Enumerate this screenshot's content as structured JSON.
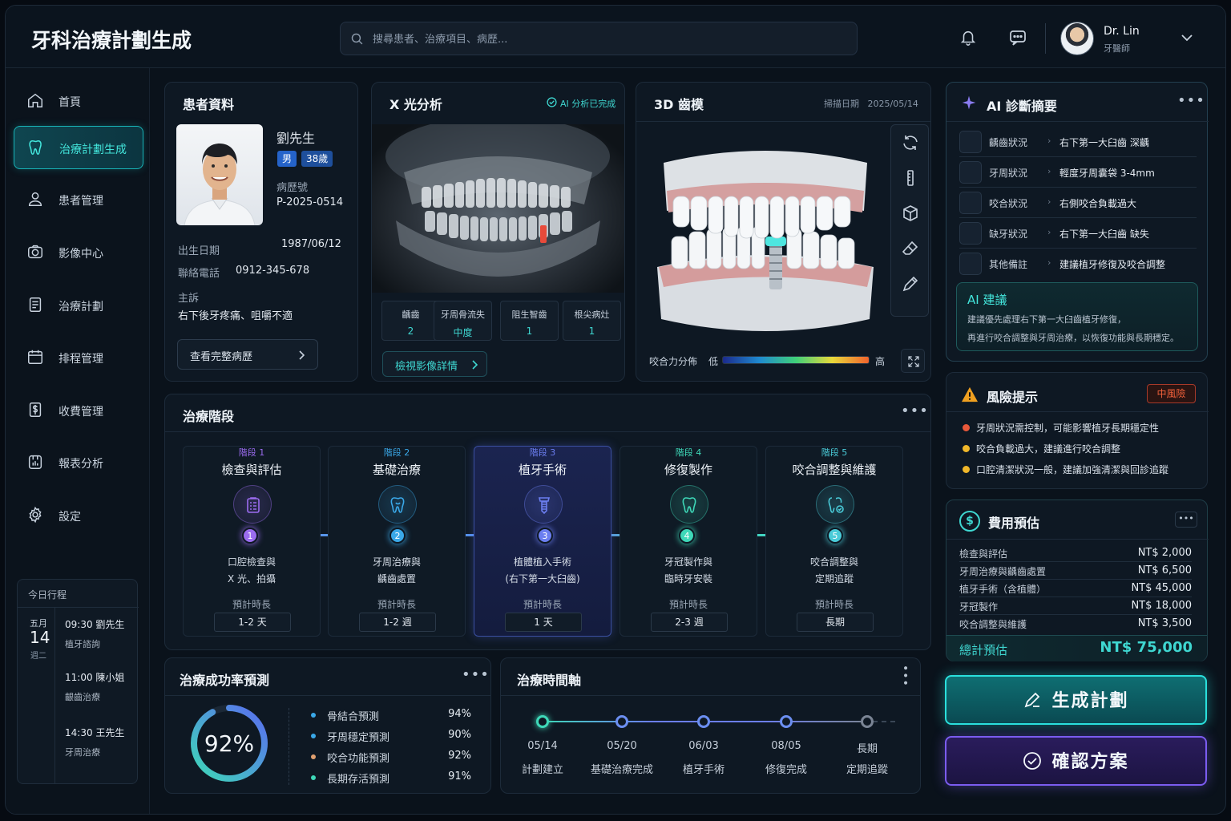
{
  "app": {
    "title": "牙科治療計劃生成"
  },
  "search": {
    "placeholder": "搜尋患者、治療項目、病歷..."
  },
  "user": {
    "name": "Dr. Lin",
    "role": "牙醫師"
  },
  "nav": [
    {
      "label": "首頁",
      "icon": "home-icon"
    },
    {
      "label": "治療計劃生成",
      "icon": "tooth-icon",
      "active": true
    },
    {
      "label": "患者管理",
      "icon": "user-icon"
    },
    {
      "label": "影像中心",
      "icon": "camera-icon"
    },
    {
      "label": "治療計劃",
      "icon": "document-icon"
    },
    {
      "label": "排程管理",
      "icon": "calendar-icon"
    },
    {
      "label": "收費管理",
      "icon": "dollar-icon"
    },
    {
      "label": "報表分析",
      "icon": "chart-icon"
    },
    {
      "label": "設定",
      "icon": "gear-icon"
    }
  ],
  "schedule": {
    "title": "今日行程",
    "month": "五月",
    "day": "14",
    "weekday": "週二",
    "events": [
      {
        "time": "09:30  劉先生",
        "desc": "植牙諮詢"
      },
      {
        "time": "11:00  陳小姐",
        "desc": "齦齒治療"
      },
      {
        "time": "14:30  王先生",
        "desc": "牙周治療"
      }
    ]
  },
  "patient": {
    "title": "患者資料",
    "name": "劉先生",
    "gender": "男",
    "age": "38歲",
    "record_label": "病歷號",
    "record": "P-2025-0514",
    "dob_label": "出生日期",
    "dob": "1987/06/12",
    "phone_label": "聯絡電話",
    "phone": "0912-345-678",
    "complaint_label": "主訴",
    "complaint": "右下後牙疼痛、咀嚼不適",
    "button": "查看完整病歷"
  },
  "xray": {
    "title": "X 光分析",
    "status": "AI 分析已完成",
    "stats": [
      {
        "k": "齲齒",
        "v": "2"
      },
      {
        "k": "牙周骨流失",
        "v": "中度"
      },
      {
        "k": "阻生智齒",
        "v": "1"
      },
      {
        "k": "根尖病灶",
        "v": "1"
      }
    ],
    "button": "檢視影像詳情"
  },
  "model3d": {
    "title": "3D 齒模",
    "scan_date": "掃描日期   2025/05/14",
    "force_label": "咬合力分佈",
    "low": "低",
    "high": "高"
  },
  "ai": {
    "title": "AI 診斷摘要",
    "rows": [
      {
        "k": "齲齒狀況",
        "v": "右下第一大臼齒 深齲"
      },
      {
        "k": "牙周狀況",
        "v": "輕度牙周囊袋 3-4mm"
      },
      {
        "k": "咬合狀況",
        "v": "右側咬合負載過大"
      },
      {
        "k": "缺牙狀況",
        "v": "右下第一大臼齒 缺失"
      },
      {
        "k": "其他備註",
        "v": "建議植牙修復及咬合調整"
      }
    ],
    "suggest_title": "AI 建議",
    "suggest_line1": "建議優先處理右下第一大臼齒植牙修復，",
    "suggest_line2": "再進行咬合調整與牙周治療，以恢復功能與長期穩定。"
  },
  "risk": {
    "title": "風險提示",
    "level": "中風險",
    "items": [
      {
        "text": "牙周狀況需控制，可能影響植牙長期穩定性",
        "color": "#e8583a"
      },
      {
        "text": "咬合負載過大，建議進行咬合調整",
        "color": "#f0b72a"
      },
      {
        "text": "口腔清潔狀況一般，建議加強清潔與回診追蹤",
        "color": "#f0b72a"
      }
    ]
  },
  "fees": {
    "title": "費用預估",
    "rows": [
      {
        "k": "檢查與評估",
        "v": "NT$ 2,000"
      },
      {
        "k": "牙周治療與齲齒處置",
        "v": "NT$ 6,500"
      },
      {
        "k": "植牙手術（含植體）",
        "v": "NT$ 45,000"
      },
      {
        "k": "牙冠製作",
        "v": "NT$ 18,000"
      },
      {
        "k": "咬合調整與維護",
        "v": "NT$ 3,500"
      }
    ],
    "total_label": "總計預估",
    "total": "NT$ 75,000"
  },
  "stages": {
    "title": "治療階段",
    "dur_label": "預計時長",
    "items": [
      {
        "label": "階段 1",
        "name": "檢查與評估",
        "desc1": "口腔檢查與",
        "desc2": "X 光、拍攝",
        "dur": "1-2 天",
        "num": "1",
        "color": "#9b6cf0",
        "icon": "clipboard-icon"
      },
      {
        "label": "階段 2",
        "name": "基礎治療",
        "desc1": "牙周治療與",
        "desc2": "齲齒處置",
        "dur": "1-2 週",
        "num": "2",
        "color": "#3aa8e8",
        "icon": "tooth-treatment-icon"
      },
      {
        "label": "階段 3",
        "name": "植牙手術",
        "desc1": "植體植入手術",
        "desc2": "(右下第一大臼齒)",
        "dur": "1 天",
        "num": "3",
        "color": "#6b7ef0",
        "icon": "implant-icon"
      },
      {
        "label": "階段 4",
        "name": "修復製作",
        "desc1": "牙冠製作與",
        "desc2": "臨時牙安裝",
        "dur": "2-3 週",
        "num": "4",
        "color": "#3ed8b8",
        "icon": "crown-icon"
      },
      {
        "label": "階段 5",
        "name": "咬合調整與維護",
        "desc1": "咬合調整與",
        "desc2": "定期追蹤",
        "dur": "長期",
        "num": "5",
        "color": "#4acbd8",
        "icon": "tooth-check-icon"
      }
    ]
  },
  "success": {
    "title": "治療成功率預測",
    "overall": "92%",
    "overall_value": 0.92,
    "rows": [
      {
        "k": "骨結合預測",
        "v": "94%",
        "color": "#3aa8e8"
      },
      {
        "k": "牙周穩定預測",
        "v": "90%",
        "color": "#3aa8e8"
      },
      {
        "k": "咬合功能預測",
        "v": "92%",
        "color": "#e0a070"
      },
      {
        "k": "長期存活預測",
        "v": "91%",
        "color": "#3ed8b8"
      }
    ]
  },
  "timeline": {
    "title": "治療時間軸",
    "items": [
      {
        "date": "05/14",
        "name": "計劃建立"
      },
      {
        "date": "05/20",
        "name": "基礎治療完成"
      },
      {
        "date": "06/03",
        "name": "植牙手術"
      },
      {
        "date": "08/05",
        "name": "修復完成"
      },
      {
        "date": "長期",
        "name": "定期追蹤"
      }
    ]
  },
  "actions": {
    "generate": "生成計劃",
    "confirm": "確認方案"
  }
}
